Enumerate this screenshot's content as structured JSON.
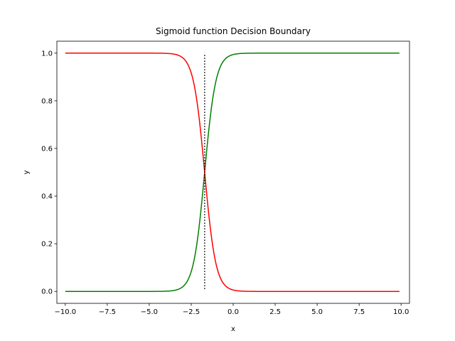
{
  "chart_data": {
    "type": "line",
    "title": "Sigmoid function Decision Boundary",
    "xlabel": "x",
    "ylabel": "y",
    "xlim": [
      -10.5,
      10.5
    ],
    "ylim": [
      -0.05,
      1.05
    ],
    "xticks": [
      -10.0,
      -7.5,
      -5.0,
      -2.5,
      0.0,
      2.5,
      5.0,
      7.5,
      10.0
    ],
    "xtick_labels": [
      "−10.0",
      "−7.5",
      "−5.0",
      "−2.5",
      "0.0",
      "2.5",
      "5.0",
      "7.5",
      "10.0"
    ],
    "yticks": [
      0.0,
      0.2,
      0.4,
      0.6,
      0.8,
      1.0
    ],
    "ytick_labels": [
      "0.0",
      "0.2",
      "0.4",
      "0.6",
      "0.8",
      "1.0"
    ],
    "grid": false,
    "x_range": [
      -10,
      9.9
    ],
    "boundary_x": -1.7,
    "series": [
      {
        "color": "#008000",
        "function": "sigmoid",
        "center": -1.7,
        "steepness": 3,
        "direction": "increasing"
      },
      {
        "color": "#ff0000",
        "function": "sigmoid",
        "center": -1.7,
        "steepness": 3,
        "direction": "decreasing"
      }
    ],
    "boundary_line": {
      "x": -1.7,
      "y": [
        0.01,
        1.0
      ],
      "color": "#000000",
      "style": "dotted"
    }
  }
}
